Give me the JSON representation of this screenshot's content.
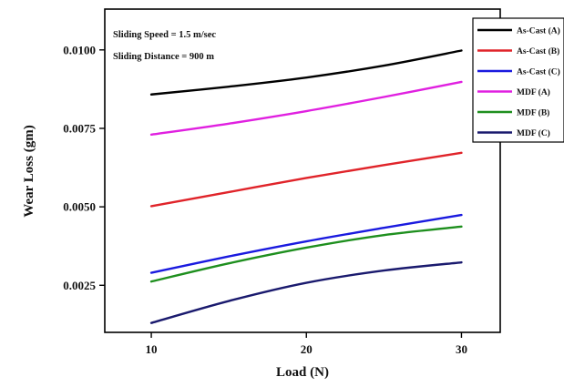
{
  "chart_data": {
    "type": "line",
    "xlabel": "Load (N)",
    "ylabel": "Wear Loss (gm)",
    "xlim": [
      7,
      32.5
    ],
    "ylim": [
      0.001,
      0.0113
    ],
    "x_ticks": [
      10,
      20,
      30
    ],
    "x_tick_labels": [
      "10",
      "20",
      "30"
    ],
    "y_ticks": [
      0.0025,
      0.005,
      0.0075,
      0.01
    ],
    "y_tick_labels": [
      "0.0025",
      "0.0050",
      "0.0075",
      "0.0100"
    ],
    "x": [
      10,
      15,
      20,
      25,
      30
    ],
    "annotations": [
      "Sliding Speed = 1.5 m/sec",
      "Sliding Distance = 900 m"
    ],
    "legend_position": "top-right",
    "grid": false,
    "series": [
      {
        "name": "As-Cast (A)",
        "color": "#000000",
        "values": [
          0.00858,
          0.00883,
          0.00912,
          0.0095,
          0.00998
        ]
      },
      {
        "name": "As-Cast (B)",
        "color": "#e0242a",
        "values": [
          0.00502,
          0.00547,
          0.00592,
          0.00633,
          0.00672
        ]
      },
      {
        "name": "As-Cast (C)",
        "color": "#1a1adf",
        "values": [
          0.0029,
          0.00342,
          0.0039,
          0.00433,
          0.00474
        ]
      },
      {
        "name": "MDF (A)",
        "color": "#e020e0",
        "values": [
          0.0073,
          0.00765,
          0.00805,
          0.0085,
          0.00898
        ]
      },
      {
        "name": "MDF (B)",
        "color": "#1e8f1e",
        "values": [
          0.00262,
          0.0032,
          0.0037,
          0.0041,
          0.00437
        ]
      },
      {
        "name": "MDF (C)",
        "color": "#1a1a6e",
        "values": [
          0.0013,
          0.002,
          0.00258,
          0.00297,
          0.00323
        ]
      }
    ]
  }
}
